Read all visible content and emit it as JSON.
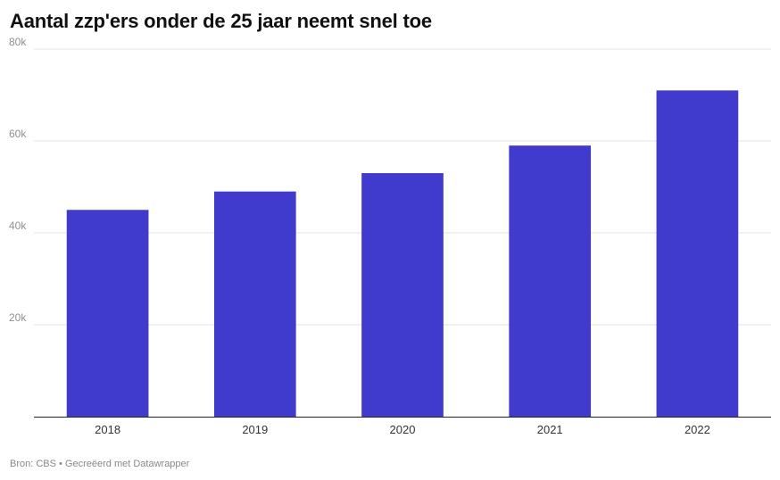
{
  "chart_data": {
    "type": "bar",
    "title": "Aantal zzp'ers onder de 25 jaar neemt snel toe",
    "categories": [
      "2018",
      "2019",
      "2020",
      "2021",
      "2022"
    ],
    "values": [
      45000,
      49000,
      53000,
      59000,
      71000
    ],
    "xlabel": "",
    "ylabel": "",
    "ylim": [
      0,
      80000
    ],
    "yticks": [
      20000,
      40000,
      60000,
      80000
    ],
    "ytick_labels": [
      "20k",
      "40k",
      "60k",
      "80k"
    ],
    "grid": true,
    "legend": "none",
    "bar_color": "#403bcd"
  },
  "footer": {
    "text": "Bron: CBS • Gecreëerd met Datawrapper"
  }
}
